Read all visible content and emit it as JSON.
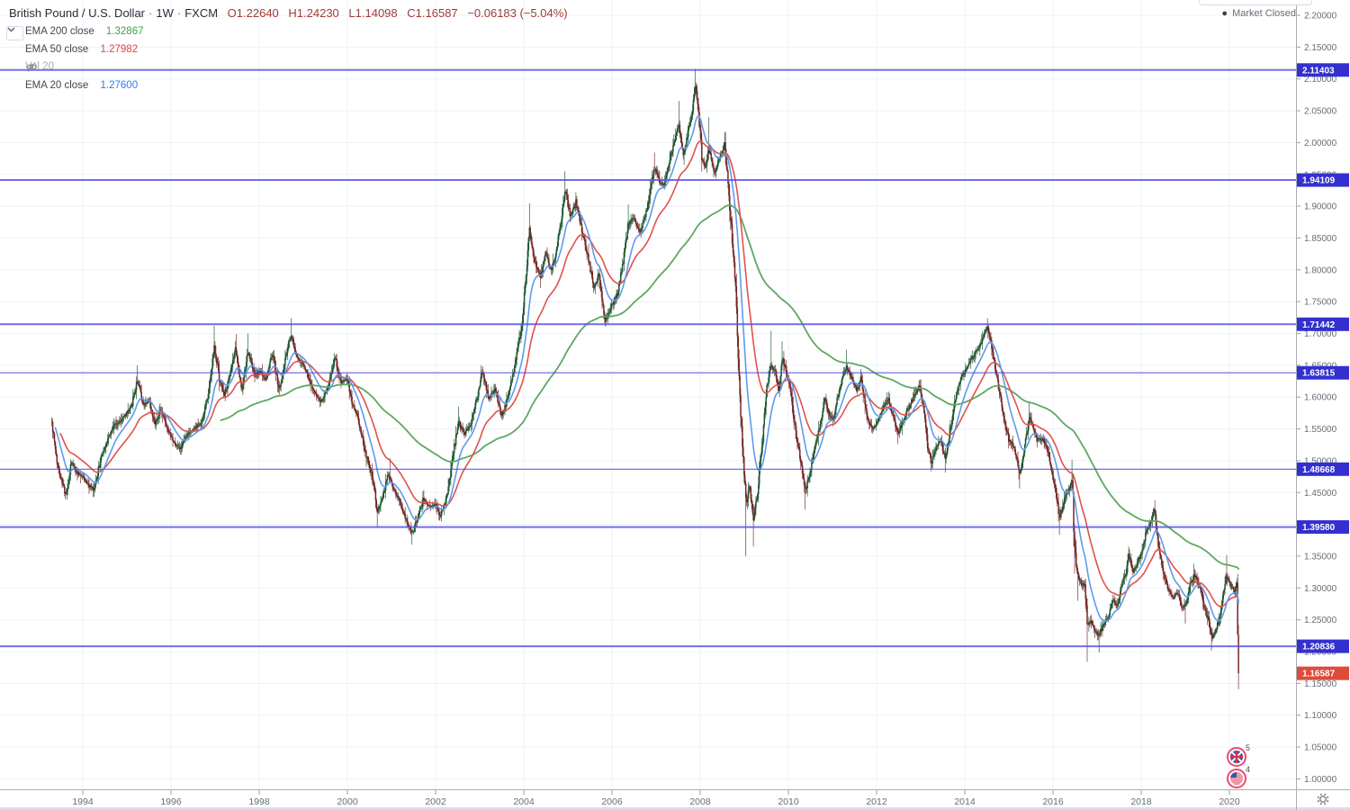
{
  "header": {
    "symbol_title": "British Pound / U.S. Dollar",
    "interval_label": "1W",
    "exchange_label": "FXCM",
    "separator": "·",
    "ohlc_color": "#9e3c38",
    "ohlc": {
      "open": "O1.22640",
      "high": "H1.24230",
      "low": "L1.14098",
      "close": "C1.16587",
      "change": "−0.06183 (−5.04%)"
    },
    "market_status": "Market Closed"
  },
  "legend": {
    "rows": [
      {
        "label": "EMA 200 close",
        "value": "1.32867",
        "value_color": "#3fa33f"
      },
      {
        "label": "EMA 50 close",
        "value": "1.27982",
        "value_color": "#e0453c"
      },
      {
        "label": "Vol 20",
        "value": "",
        "value_color": "",
        "muted": true,
        "icon": "eye-off-icon"
      },
      {
        "label": "EMA 20 close",
        "value": "1.27600",
        "value_color": "#2f7ded"
      }
    ]
  },
  "price_scale": {
    "ticks": [
      "2.20000",
      "2.15000",
      "2.10000",
      "2.05000",
      "2.00000",
      "1.95000",
      "1.90000",
      "1.85000",
      "1.80000",
      "1.75000",
      "1.70000",
      "1.65000",
      "1.60000",
      "1.55000",
      "1.50000",
      "1.45000",
      "1.40000",
      "1.35000",
      "1.30000",
      "1.25000",
      "1.20000",
      "1.15000",
      "1.10000",
      "1.05000",
      "1.00000"
    ],
    "badges": [
      {
        "text": "2.11403",
        "price": 2.11403,
        "kind": "level"
      },
      {
        "text": "1.94109",
        "price": 1.94109,
        "kind": "level"
      },
      {
        "text": "1.71442",
        "price": 1.71442,
        "kind": "level"
      },
      {
        "text": "1.63815",
        "price": 1.63815,
        "kind": "level",
        "thin": true
      },
      {
        "text": "1.48668",
        "price": 1.48668,
        "kind": "level",
        "thin": true
      },
      {
        "text": "1.39580",
        "price": 1.3958,
        "kind": "level"
      },
      {
        "text": "1.20836",
        "price": 1.20836,
        "kind": "level"
      },
      {
        "text": "1.16587",
        "price": 1.16587,
        "kind": "last"
      }
    ]
  },
  "time_scale": {
    "ticks": [
      "1994",
      "1996",
      "1998",
      "2000",
      "2002",
      "2004",
      "2006",
      "2008",
      "2010",
      "2012",
      "2014",
      "2016",
      "2018",
      "2020"
    ]
  },
  "events": [
    {
      "icon": "uk-flag-icon",
      "count": "5"
    },
    {
      "icon": "us-flag-icon",
      "count": "4"
    }
  ],
  "toolbar": {
    "settings_icon": "gear-icon"
  },
  "chart_data": {
    "type": "candlestick",
    "title": "British Pound / U.S. Dollar 1W FXCM",
    "x_domain": [
      1993.3,
      2021.6
    ],
    "y_domain": [
      1.0,
      2.2
    ],
    "weeks_per_year": 52.18,
    "grid": true,
    "last_candle": {
      "open": 1.2264,
      "high": 1.2423,
      "low": 1.14098,
      "close": 1.16587
    },
    "emas": [
      {
        "period": 200,
        "color": "#5da863",
        "width": 1.8,
        "start": 200,
        "last": 1.32867
      },
      {
        "period": 50,
        "color": "#e0524c",
        "width": 1.6,
        "start": 10,
        "last": 1.27982
      },
      {
        "period": 20,
        "color": "#5f9beb",
        "width": 1.6,
        "start": 4,
        "last": 1.276
      }
    ],
    "colors": {
      "up": "#17502b",
      "down": "#6e211f",
      "grid": "#eef1f8",
      "hline": "#5a54e8",
      "hline_thin": "#4a45d8",
      "badge_level": "#3330cf",
      "badge_last": "#dd4b3c",
      "axis_border": "#a9adb5",
      "axis_text": "#686c76",
      "bottom_strip": "#d2e0f5"
    },
    "keyframes": [
      [
        1993.3,
        1.56
      ],
      [
        1993.4,
        1.502
      ],
      [
        1993.52,
        1.468
      ],
      [
        1993.62,
        1.444
      ],
      [
        1993.74,
        1.497
      ],
      [
        1993.86,
        1.482
      ],
      [
        1994,
        1.476
      ],
      [
        1994.12,
        1.462
      ],
      [
        1994.25,
        1.452
      ],
      [
        1994.4,
        1.502
      ],
      [
        1994.55,
        1.532
      ],
      [
        1994.7,
        1.555
      ],
      [
        1994.85,
        1.562
      ],
      [
        1995,
        1.575
      ],
      [
        1995.12,
        1.59
      ],
      [
        1995.24,
        1.628
      ],
      [
        1995.36,
        1.588
      ],
      [
        1995.5,
        1.594
      ],
      [
        1995.64,
        1.56
      ],
      [
        1995.78,
        1.58
      ],
      [
        1995.92,
        1.548
      ],
      [
        1996.06,
        1.528
      ],
      [
        1996.22,
        1.518
      ],
      [
        1996.38,
        1.542
      ],
      [
        1996.55,
        1.552
      ],
      [
        1996.7,
        1.56
      ],
      [
        1996.85,
        1.608
      ],
      [
        1996.98,
        1.682
      ],
      [
        1997.1,
        1.628
      ],
      [
        1997.22,
        1.602
      ],
      [
        1997.35,
        1.642
      ],
      [
        1997.47,
        1.678
      ],
      [
        1997.6,
        1.608
      ],
      [
        1997.75,
        1.672
      ],
      [
        1997.9,
        1.632
      ],
      [
        1998.02,
        1.642
      ],
      [
        1998.15,
        1.626
      ],
      [
        1998.3,
        1.67
      ],
      [
        1998.45,
        1.61
      ],
      [
        1998.6,
        1.662
      ],
      [
        1998.72,
        1.7
      ],
      [
        1998.85,
        1.662
      ],
      [
        1999,
        1.652
      ],
      [
        1999.12,
        1.63
      ],
      [
        1999.25,
        1.606
      ],
      [
        1999.4,
        1.592
      ],
      [
        1999.55,
        1.616
      ],
      [
        1999.72,
        1.662
      ],
      [
        1999.85,
        1.622
      ],
      [
        2000,
        1.63
      ],
      [
        2000.1,
        1.592
      ],
      [
        2000.22,
        1.572
      ],
      [
        2000.32,
        1.542
      ],
      [
        2000.45,
        1.502
      ],
      [
        2000.58,
        1.472
      ],
      [
        2000.67,
        1.42
      ],
      [
        2000.8,
        1.442
      ],
      [
        2000.92,
        1.478
      ],
      [
        2001.08,
        1.452
      ],
      [
        2001.22,
        1.428
      ],
      [
        2001.35,
        1.402
      ],
      [
        2001.47,
        1.385
      ],
      [
        2001.6,
        1.412
      ],
      [
        2001.72,
        1.442
      ],
      [
        2001.85,
        1.428
      ],
      [
        2002,
        1.432
      ],
      [
        2002.1,
        1.412
      ],
      [
        2002.25,
        1.442
      ],
      [
        2002.4,
        1.512
      ],
      [
        2002.52,
        1.562
      ],
      [
        2002.65,
        1.542
      ],
      [
        2002.8,
        1.556
      ],
      [
        2002.95,
        1.602
      ],
      [
        2003.06,
        1.645
      ],
      [
        2003.2,
        1.598
      ],
      [
        2003.35,
        1.612
      ],
      [
        2003.5,
        1.568
      ],
      [
        2003.65,
        1.602
      ],
      [
        2003.8,
        1.655
      ],
      [
        2003.95,
        1.708
      ],
      [
        2004.05,
        1.792
      ],
      [
        2004.12,
        1.868
      ],
      [
        2004.25,
        1.812
      ],
      [
        2004.38,
        1.788
      ],
      [
        2004.5,
        1.832
      ],
      [
        2004.6,
        1.798
      ],
      [
        2004.72,
        1.822
      ],
      [
        2004.85,
        1.878
      ],
      [
        2004.94,
        1.928
      ],
      [
        2005.06,
        1.882
      ],
      [
        2005.18,
        1.908
      ],
      [
        2005.32,
        1.862
      ],
      [
        2005.45,
        1.822
      ],
      [
        2005.58,
        1.772
      ],
      [
        2005.7,
        1.792
      ],
      [
        2005.85,
        1.718
      ],
      [
        2005.98,
        1.742
      ],
      [
        2006.12,
        1.762
      ],
      [
        2006.25,
        1.812
      ],
      [
        2006.37,
        1.872
      ],
      [
        2006.5,
        1.882
      ],
      [
        2006.62,
        1.858
      ],
      [
        2006.75,
        1.882
      ],
      [
        2006.88,
        1.932
      ],
      [
        2006.97,
        1.962
      ],
      [
        2007.08,
        1.938
      ],
      [
        2007.18,
        1.932
      ],
      [
        2007.3,
        1.972
      ],
      [
        2007.4,
        1.998
      ],
      [
        2007.52,
        2.028
      ],
      [
        2007.63,
        1.978
      ],
      [
        2007.74,
        2.026
      ],
      [
        2007.82,
        2.046
      ],
      [
        2007.88,
        2.096
      ],
      [
        2007.96,
        2.052
      ],
      [
        2008.04,
        1.978
      ],
      [
        2008.12,
        1.958
      ],
      [
        2008.2,
        1.992
      ],
      [
        2008.32,
        1.952
      ],
      [
        2008.44,
        1.976
      ],
      [
        2008.55,
        1.998
      ],
      [
        2008.64,
        1.932
      ],
      [
        2008.72,
        1.852
      ],
      [
        2008.8,
        1.772
      ],
      [
        2008.86,
        1.672
      ],
      [
        2008.92,
        1.572
      ],
      [
        2008.98,
        1.492
      ],
      [
        2009.04,
        1.432
      ],
      [
        2009.12,
        1.462
      ],
      [
        2009.2,
        1.408
      ],
      [
        2009.3,
        1.452
      ],
      [
        2009.4,
        1.522
      ],
      [
        2009.5,
        1.612
      ],
      [
        2009.6,
        1.648
      ],
      [
        2009.7,
        1.642
      ],
      [
        2009.78,
        1.612
      ],
      [
        2009.86,
        1.662
      ],
      [
        2009.95,
        1.642
      ],
      [
        2010.05,
        1.608
      ],
      [
        2010.15,
        1.552
      ],
      [
        2010.25,
        1.512
      ],
      [
        2010.38,
        1.452
      ],
      [
        2010.5,
        1.482
      ],
      [
        2010.6,
        1.522
      ],
      [
        2010.72,
        1.558
      ],
      [
        2010.82,
        1.598
      ],
      [
        2010.92,
        1.572
      ],
      [
        2011.02,
        1.562
      ],
      [
        2011.12,
        1.602
      ],
      [
        2011.22,
        1.628
      ],
      [
        2011.32,
        1.648
      ],
      [
        2011.45,
        1.628
      ],
      [
        2011.55,
        1.608
      ],
      [
        2011.65,
        1.632
      ],
      [
        2011.78,
        1.568
      ],
      [
        2011.9,
        1.548
      ],
      [
        2012.02,
        1.562
      ],
      [
        2012.14,
        1.582
      ],
      [
        2012.26,
        1.598
      ],
      [
        2012.38,
        1.568
      ],
      [
        2012.48,
        1.542
      ],
      [
        2012.6,
        1.562
      ],
      [
        2012.72,
        1.582
      ],
      [
        2012.85,
        1.602
      ],
      [
        2012.98,
        1.618
      ],
      [
        2013.08,
        1.572
      ],
      [
        2013.16,
        1.522
      ],
      [
        2013.24,
        1.496
      ],
      [
        2013.35,
        1.522
      ],
      [
        2013.45,
        1.532
      ],
      [
        2013.56,
        1.502
      ],
      [
        2013.68,
        1.552
      ],
      [
        2013.8,
        1.602
      ],
      [
        2013.92,
        1.632
      ],
      [
        2014.04,
        1.645
      ],
      [
        2014.16,
        1.662
      ],
      [
        2014.28,
        1.672
      ],
      [
        2014.4,
        1.692
      ],
      [
        2014.52,
        1.71
      ],
      [
        2014.64,
        1.668
      ],
      [
        2014.76,
        1.618
      ],
      [
        2014.88,
        1.568
      ],
      [
        2015,
        1.532
      ],
      [
        2015.12,
        1.522
      ],
      [
        2015.25,
        1.478
      ],
      [
        2015.36,
        1.522
      ],
      [
        2015.46,
        1.568
      ],
      [
        2015.56,
        1.552
      ],
      [
        2015.66,
        1.532
      ],
      [
        2015.78,
        1.535
      ],
      [
        2015.9,
        1.512
      ],
      [
        2016,
        1.472
      ],
      [
        2016.08,
        1.442
      ],
      [
        2016.15,
        1.408
      ],
      [
        2016.25,
        1.438
      ],
      [
        2016.35,
        1.452
      ],
      [
        2016.44,
        1.468
      ],
      [
        2016.48,
        1.368
      ],
      [
        2016.56,
        1.322
      ],
      [
        2016.65,
        1.302
      ],
      [
        2016.72,
        1.308
      ],
      [
        2016.78,
        1.244
      ],
      [
        2016.88,
        1.248
      ],
      [
        2016.96,
        1.232
      ],
      [
        2017.04,
        1.226
      ],
      [
        2017.14,
        1.242
      ],
      [
        2017.25,
        1.255
      ],
      [
        2017.35,
        1.282
      ],
      [
        2017.45,
        1.272
      ],
      [
        2017.55,
        1.302
      ],
      [
        2017.65,
        1.322
      ],
      [
        2017.72,
        1.352
      ],
      [
        2017.82,
        1.322
      ],
      [
        2017.92,
        1.342
      ],
      [
        2018.02,
        1.355
      ],
      [
        2018.12,
        1.392
      ],
      [
        2018.22,
        1.402
      ],
      [
        2018.3,
        1.425
      ],
      [
        2018.4,
        1.362
      ],
      [
        2018.5,
        1.322
      ],
      [
        2018.6,
        1.302
      ],
      [
        2018.72,
        1.282
      ],
      [
        2018.82,
        1.295
      ],
      [
        2018.92,
        1.272
      ],
      [
        2019,
        1.272
      ],
      [
        2019.1,
        1.302
      ],
      [
        2019.2,
        1.322
      ],
      [
        2019.32,
        1.302
      ],
      [
        2019.42,
        1.272
      ],
      [
        2019.52,
        1.252
      ],
      [
        2019.6,
        1.222
      ],
      [
        2019.7,
        1.235
      ],
      [
        2019.78,
        1.255
      ],
      [
        2019.86,
        1.292
      ],
      [
        2019.93,
        1.322
      ],
      [
        2020,
        1.308
      ],
      [
        2020.07,
        1.3
      ],
      [
        2020.13,
        1.292
      ],
      [
        2020.18,
        1.31
      ],
      [
        2020.22,
        1.16587
      ]
    ],
    "high_events": [
      [
        1995.24,
        1.65
      ],
      [
        1996.98,
        1.712
      ],
      [
        1997.47,
        1.699
      ],
      [
        1997.75,
        1.7
      ],
      [
        1998.72,
        1.724
      ],
      [
        2000.96,
        1.5045
      ],
      [
        2002.52,
        1.585
      ],
      [
        2004.12,
        1.9045
      ],
      [
        2004.94,
        1.955
      ],
      [
        2005.18,
        1.922
      ],
      [
        2006.37,
        1.9025
      ],
      [
        2006.97,
        1.9845
      ],
      [
        2007.4,
        2.0133
      ],
      [
        2007.52,
        2.0654
      ],
      [
        2007.88,
        2.116
      ],
      [
        2008.2,
        2.0397
      ],
      [
        2008.55,
        2.0158
      ],
      [
        2009.6,
        1.7042
      ],
      [
        2009.86,
        1.688
      ],
      [
        2011.32,
        1.6746
      ],
      [
        2014.52,
        1.7192
      ],
      [
        2015.46,
        1.593
      ],
      [
        2016.44,
        1.5018
      ],
      [
        2017.72,
        1.365
      ],
      [
        2018.3,
        1.4377
      ],
      [
        2019.2,
        1.338
      ],
      [
        2019.93,
        1.3514
      ],
      [
        2020.18,
        1.32
      ]
    ],
    "low_events": [
      [
        2000.67,
        1.395
      ],
      [
        2001.47,
        1.368
      ],
      [
        2002.1,
        1.406
      ],
      [
        2004.38,
        1.7714
      ],
      [
        2005.85,
        1.711
      ],
      [
        2007.63,
        1.9652
      ],
      [
        2009.04,
        1.35
      ],
      [
        2009.2,
        1.365
      ],
      [
        2010.38,
        1.423
      ],
      [
        2012.48,
        1.5268
      ],
      [
        2013.24,
        1.4832
      ],
      [
        2013.56,
        1.4814
      ],
      [
        2015.25,
        1.4565
      ],
      [
        2016.15,
        1.3836
      ],
      [
        2016.48,
        1.3228
      ],
      [
        2016.56,
        1.2798
      ],
      [
        2016.78,
        1.1841
      ],
      [
        2017.04,
        1.1986
      ],
      [
        2019,
        1.244
      ],
      [
        2019.6,
        1.2015
      ]
    ]
  }
}
